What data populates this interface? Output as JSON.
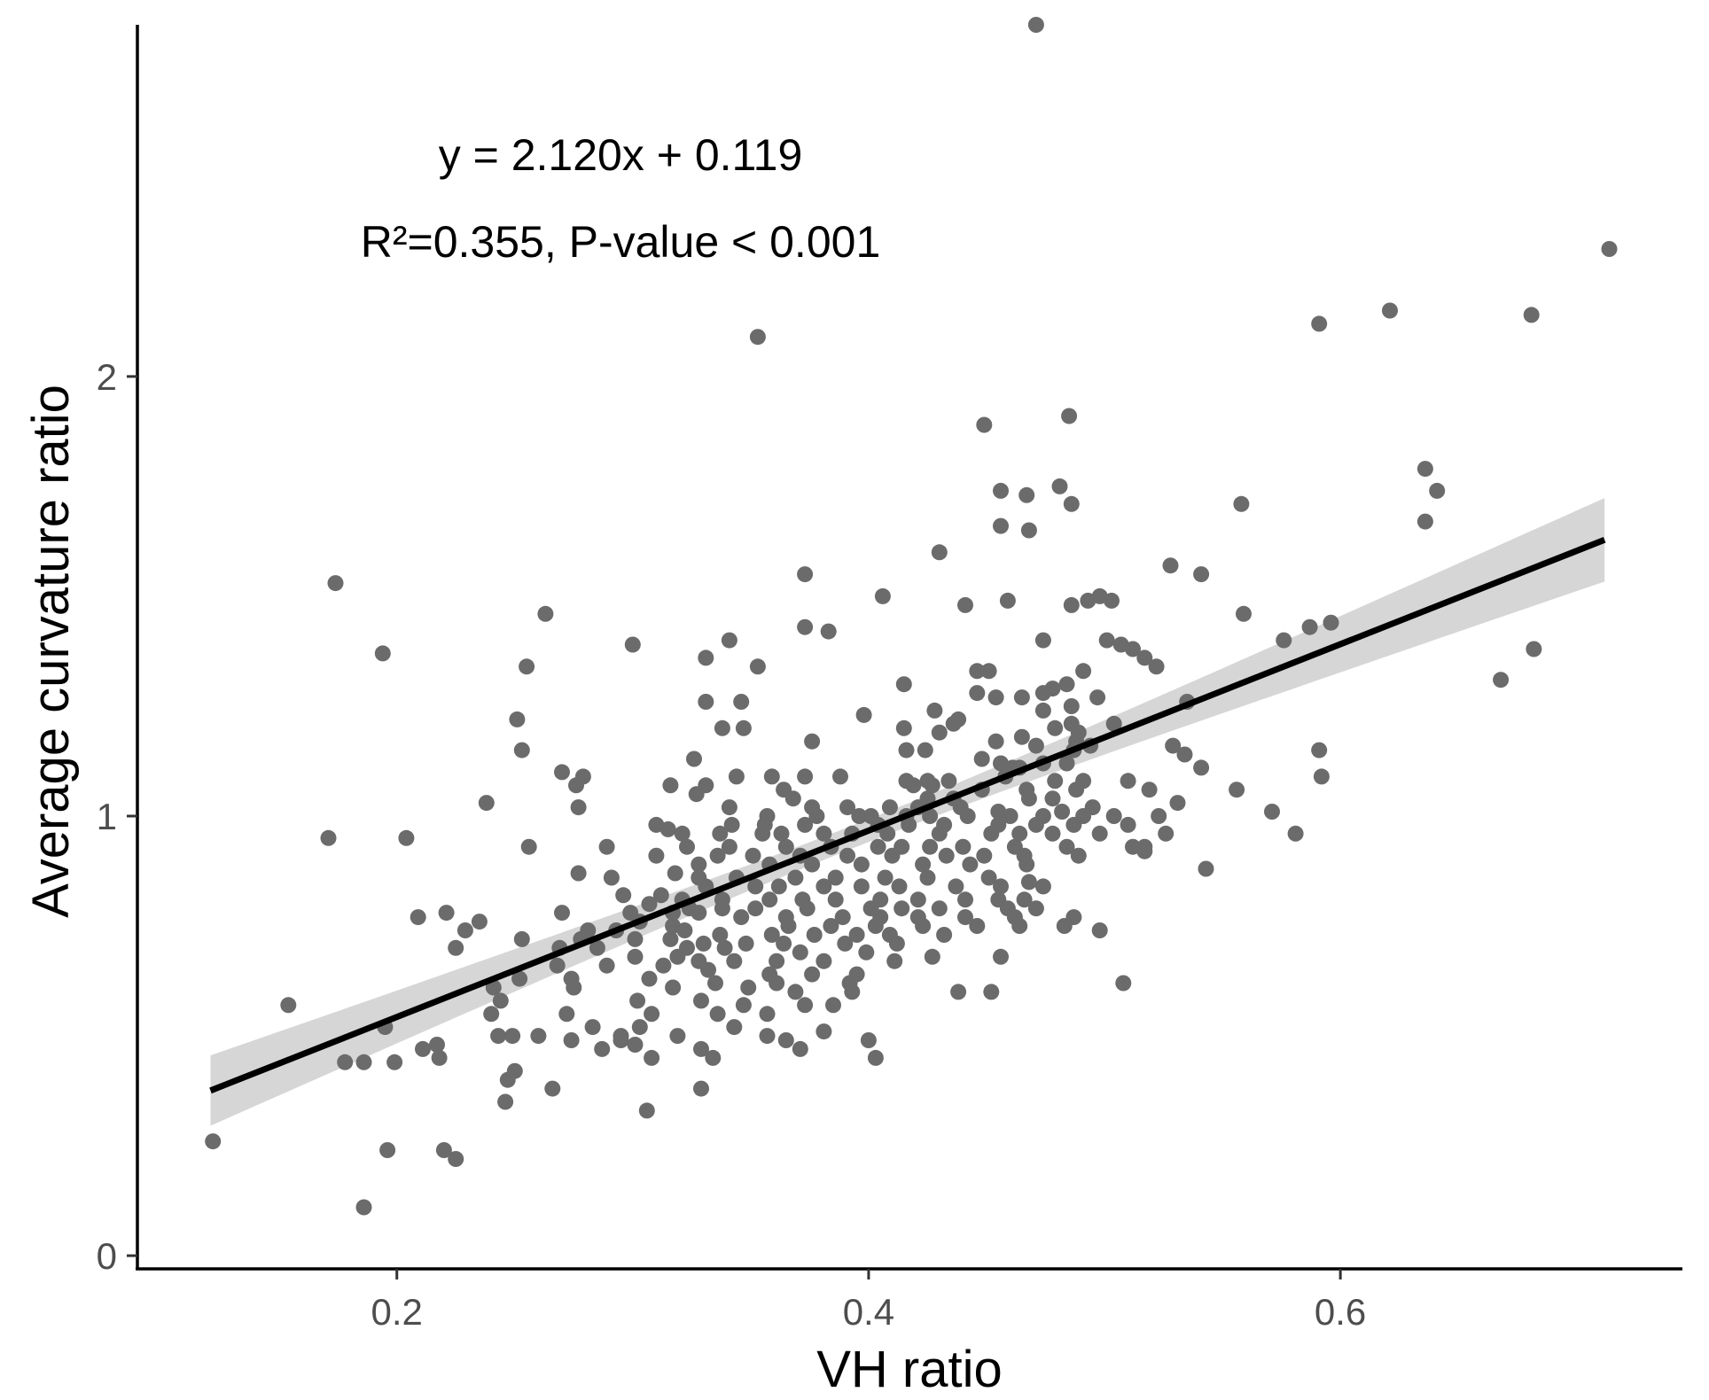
{
  "chart_data": {
    "type": "scatter",
    "title": "",
    "xlabel": "VH ratio",
    "ylabel": "Average curvature ratio",
    "xlim": [
      0.09,
      0.745
    ],
    "ylim": [
      -0.03,
      2.8
    ],
    "x_ticks": [
      0.2,
      0.4,
      0.6
    ],
    "x_tick_labels": [
      "0.2",
      "0.4",
      "0.6"
    ],
    "y_ticks": [
      0,
      1,
      2
    ],
    "y_tick_labels": [
      "0",
      "1",
      "2"
    ],
    "grid": false,
    "annotations": {
      "equation": "y = 2.120x + 0.119",
      "stats": "R²=0.355, P-value < 0.001"
    },
    "fit": {
      "slope": 2.12,
      "intercept": 0.119,
      "x_range": [
        0.121,
        0.712
      ],
      "ci_lower_end": [
        0.3,
        1.54
      ],
      "ci_upper_end": [
        0.455,
        1.74
      ],
      "ci_center_x": 0.4
    },
    "colors": {
      "points": "#6b6b6b",
      "line": "#000000",
      "band": "#d6d6d6",
      "axis": "#000000",
      "tick_text": "#4d4d4d"
    },
    "points": [
      [
        0.471,
        2.8
      ],
      [
        0.714,
        2.29
      ],
      [
        0.353,
        2.09
      ],
      [
        0.621,
        2.15
      ],
      [
        0.681,
        2.14
      ],
      [
        0.591,
        2.12
      ],
      [
        0.449,
        1.89
      ],
      [
        0.485,
        1.91
      ],
      [
        0.636,
        1.79
      ],
      [
        0.641,
        1.74
      ],
      [
        0.456,
        1.74
      ],
      [
        0.467,
        1.73
      ],
      [
        0.481,
        1.75
      ],
      [
        0.486,
        1.71
      ],
      [
        0.558,
        1.71
      ],
      [
        0.636,
        1.67
      ],
      [
        0.456,
        1.66
      ],
      [
        0.468,
        1.65
      ],
      [
        0.43,
        1.6
      ],
      [
        0.528,
        1.57
      ],
      [
        0.373,
        1.55
      ],
      [
        0.541,
        1.55
      ],
      [
        0.174,
        1.53
      ],
      [
        0.406,
        1.5
      ],
      [
        0.441,
        1.48
      ],
      [
        0.459,
        1.49
      ],
      [
        0.486,
        1.48
      ],
      [
        0.493,
        1.49
      ],
      [
        0.498,
        1.5
      ],
      [
        0.503,
        1.49
      ],
      [
        0.263,
        1.46
      ],
      [
        0.559,
        1.46
      ],
      [
        0.373,
        1.43
      ],
      [
        0.383,
        1.42
      ],
      [
        0.587,
        1.43
      ],
      [
        0.596,
        1.44
      ],
      [
        0.341,
        1.4
      ],
      [
        0.3,
        1.39
      ],
      [
        0.474,
        1.4
      ],
      [
        0.501,
        1.4
      ],
      [
        0.512,
        1.38
      ],
      [
        0.576,
        1.4
      ],
      [
        0.682,
        1.38
      ],
      [
        0.194,
        1.37
      ],
      [
        0.331,
        1.36
      ],
      [
        0.353,
        1.34
      ],
      [
        0.507,
        1.39
      ],
      [
        0.517,
        1.36
      ],
      [
        0.522,
        1.34
      ],
      [
        0.255,
        1.34
      ],
      [
        0.446,
        1.33
      ],
      [
        0.451,
        1.33
      ],
      [
        0.491,
        1.33
      ],
      [
        0.484,
        1.3
      ],
      [
        0.474,
        1.28
      ],
      [
        0.446,
        1.28
      ],
      [
        0.454,
        1.27
      ],
      [
        0.465,
        1.27
      ],
      [
        0.478,
        1.29
      ],
      [
        0.668,
        1.31
      ],
      [
        0.415,
        1.3
      ],
      [
        0.331,
        1.26
      ],
      [
        0.346,
        1.26
      ],
      [
        0.428,
        1.24
      ],
      [
        0.438,
        1.22
      ],
      [
        0.497,
        1.27
      ],
      [
        0.486,
        1.25
      ],
      [
        0.474,
        1.24
      ],
      [
        0.535,
        1.26
      ],
      [
        0.251,
        1.22
      ],
      [
        0.398,
        1.23
      ],
      [
        0.436,
        1.21
      ],
      [
        0.486,
        1.21
      ],
      [
        0.479,
        1.2
      ],
      [
        0.489,
        1.19
      ],
      [
        0.504,
        1.21
      ],
      [
        0.338,
        1.2
      ],
      [
        0.347,
        1.2
      ],
      [
        0.415,
        1.2
      ],
      [
        0.43,
        1.19
      ],
      [
        0.465,
        1.18
      ],
      [
        0.488,
        1.17
      ],
      [
        0.494,
        1.16
      ],
      [
        0.529,
        1.16
      ],
      [
        0.376,
        1.17
      ],
      [
        0.454,
        1.17
      ],
      [
        0.471,
        1.16
      ],
      [
        0.416,
        1.15
      ],
      [
        0.424,
        1.15
      ],
      [
        0.253,
        1.15
      ],
      [
        0.487,
        1.15
      ],
      [
        0.534,
        1.14
      ],
      [
        0.591,
        1.15
      ],
      [
        0.326,
        1.13
      ],
      [
        0.448,
        1.13
      ],
      [
        0.456,
        1.12
      ],
      [
        0.484,
        1.12
      ],
      [
        0.461,
        1.11
      ],
      [
        0.464,
        1.11
      ],
      [
        0.474,
        1.12
      ],
      [
        0.541,
        1.11
      ],
      [
        0.27,
        1.1
      ],
      [
        0.279,
        1.09
      ],
      [
        0.344,
        1.09
      ],
      [
        0.359,
        1.09
      ],
      [
        0.373,
        1.09
      ],
      [
        0.388,
        1.09
      ],
      [
        0.416,
        1.08
      ],
      [
        0.425,
        1.08
      ],
      [
        0.434,
        1.08
      ],
      [
        0.458,
        1.09
      ],
      [
        0.479,
        1.08
      ],
      [
        0.491,
        1.08
      ],
      [
        0.51,
        1.08
      ],
      [
        0.592,
        1.09
      ],
      [
        0.276,
        1.07
      ],
      [
        0.316,
        1.07
      ],
      [
        0.331,
        1.07
      ],
      [
        0.364,
        1.06
      ],
      [
        0.419,
        1.07
      ],
      [
        0.427,
        1.07
      ],
      [
        0.448,
        1.06
      ],
      [
        0.467,
        1.06
      ],
      [
        0.488,
        1.06
      ],
      [
        0.519,
        1.06
      ],
      [
        0.327,
        1.05
      ],
      [
        0.368,
        1.04
      ],
      [
        0.425,
        1.04
      ],
      [
        0.436,
        1.04
      ],
      [
        0.468,
        1.04
      ],
      [
        0.478,
        1.04
      ],
      [
        0.556,
        1.06
      ],
      [
        0.238,
        1.03
      ],
      [
        0.277,
        1.02
      ],
      [
        0.341,
        1.02
      ],
      [
        0.376,
        1.02
      ],
      [
        0.391,
        1.02
      ],
      [
        0.409,
        1.02
      ],
      [
        0.421,
        1.02
      ],
      [
        0.439,
        1.02
      ],
      [
        0.455,
        1.01
      ],
      [
        0.482,
        1.01
      ],
      [
        0.495,
        1.02
      ],
      [
        0.531,
        1.03
      ],
      [
        0.571,
        1.01
      ],
      [
        0.357,
        1.0
      ],
      [
        0.378,
        1.0
      ],
      [
        0.396,
        1.0
      ],
      [
        0.401,
        1.0
      ],
      [
        0.416,
        1.0
      ],
      [
        0.426,
        1.0
      ],
      [
        0.442,
        1.0
      ],
      [
        0.46,
        1.0
      ],
      [
        0.474,
        1.0
      ],
      [
        0.491,
        1.0
      ],
      [
        0.504,
        1.0
      ],
      [
        0.523,
        1.0
      ],
      [
        0.31,
        0.98
      ],
      [
        0.342,
        0.98
      ],
      [
        0.356,
        0.98
      ],
      [
        0.373,
        0.98
      ],
      [
        0.404,
        0.98
      ],
      [
        0.417,
        0.98
      ],
      [
        0.432,
        0.98
      ],
      [
        0.455,
        0.98
      ],
      [
        0.471,
        0.98
      ],
      [
        0.487,
        0.98
      ],
      [
        0.51,
        0.98
      ],
      [
        0.315,
        0.97
      ],
      [
        0.321,
        0.96
      ],
      [
        0.337,
        0.96
      ],
      [
        0.355,
        0.96
      ],
      [
        0.363,
        0.96
      ],
      [
        0.381,
        0.96
      ],
      [
        0.393,
        0.96
      ],
      [
        0.408,
        0.96
      ],
      [
        0.43,
        0.96
      ],
      [
        0.452,
        0.96
      ],
      [
        0.464,
        0.96
      ],
      [
        0.478,
        0.96
      ],
      [
        0.498,
        0.96
      ],
      [
        0.526,
        0.96
      ],
      [
        0.171,
        0.95
      ],
      [
        0.204,
        0.95
      ],
      [
        0.256,
        0.93
      ],
      [
        0.289,
        0.93
      ],
      [
        0.323,
        0.93
      ],
      [
        0.341,
        0.93
      ],
      [
        0.365,
        0.93
      ],
      [
        0.384,
        0.93
      ],
      [
        0.404,
        0.93
      ],
      [
        0.414,
        0.93
      ],
      [
        0.426,
        0.93
      ],
      [
        0.44,
        0.93
      ],
      [
        0.462,
        0.93
      ],
      [
        0.484,
        0.93
      ],
      [
        0.512,
        0.93
      ],
      [
        0.517,
        0.93
      ],
      [
        0.31,
        0.91
      ],
      [
        0.336,
        0.91
      ],
      [
        0.351,
        0.91
      ],
      [
        0.371,
        0.91
      ],
      [
        0.391,
        0.91
      ],
      [
        0.41,
        0.91
      ],
      [
        0.433,
        0.91
      ],
      [
        0.449,
        0.91
      ],
      [
        0.466,
        0.91
      ],
      [
        0.489,
        0.91
      ],
      [
        0.517,
        0.92
      ],
      [
        0.581,
        0.96
      ],
      [
        0.328,
        0.89
      ],
      [
        0.358,
        0.89
      ],
      [
        0.376,
        0.89
      ],
      [
        0.397,
        0.89
      ],
      [
        0.423,
        0.89
      ],
      [
        0.443,
        0.89
      ],
      [
        0.467,
        0.89
      ],
      [
        0.543,
        0.88
      ],
      [
        0.277,
        0.87
      ],
      [
        0.291,
        0.86
      ],
      [
        0.318,
        0.87
      ],
      [
        0.328,
        0.86
      ],
      [
        0.344,
        0.86
      ],
      [
        0.369,
        0.86
      ],
      [
        0.386,
        0.86
      ],
      [
        0.407,
        0.86
      ],
      [
        0.425,
        0.86
      ],
      [
        0.451,
        0.86
      ],
      [
        0.468,
        0.85
      ],
      [
        0.331,
        0.84
      ],
      [
        0.352,
        0.84
      ],
      [
        0.362,
        0.84
      ],
      [
        0.381,
        0.84
      ],
      [
        0.397,
        0.84
      ],
      [
        0.413,
        0.84
      ],
      [
        0.437,
        0.84
      ],
      [
        0.456,
        0.84
      ],
      [
        0.474,
        0.84
      ],
      [
        0.296,
        0.82
      ],
      [
        0.312,
        0.82
      ],
      [
        0.321,
        0.81
      ],
      [
        0.338,
        0.81
      ],
      [
        0.358,
        0.81
      ],
      [
        0.372,
        0.81
      ],
      [
        0.386,
        0.81
      ],
      [
        0.405,
        0.81
      ],
      [
        0.421,
        0.81
      ],
      [
        0.441,
        0.81
      ],
      [
        0.455,
        0.81
      ],
      [
        0.466,
        0.81
      ],
      [
        0.307,
        0.8
      ],
      [
        0.324,
        0.79
      ],
      [
        0.338,
        0.79
      ],
      [
        0.352,
        0.79
      ],
      [
        0.374,
        0.79
      ],
      [
        0.401,
        0.79
      ],
      [
        0.414,
        0.79
      ],
      [
        0.43,
        0.79
      ],
      [
        0.459,
        0.79
      ],
      [
        0.471,
        0.79
      ],
      [
        0.221,
        0.78
      ],
      [
        0.27,
        0.78
      ],
      [
        0.299,
        0.78
      ],
      [
        0.317,
        0.78
      ],
      [
        0.328,
        0.78
      ],
      [
        0.346,
        0.77
      ],
      [
        0.365,
        0.77
      ],
      [
        0.389,
        0.77
      ],
      [
        0.405,
        0.77
      ],
      [
        0.421,
        0.77
      ],
      [
        0.441,
        0.77
      ],
      [
        0.462,
        0.77
      ],
      [
        0.487,
        0.77
      ],
      [
        0.209,
        0.77
      ],
      [
        0.235,
        0.76
      ],
      [
        0.303,
        0.76
      ],
      [
        0.317,
        0.75
      ],
      [
        0.366,
        0.75
      ],
      [
        0.384,
        0.75
      ],
      [
        0.403,
        0.75
      ],
      [
        0.423,
        0.75
      ],
      [
        0.446,
        0.75
      ],
      [
        0.464,
        0.75
      ],
      [
        0.483,
        0.75
      ],
      [
        0.498,
        0.74
      ],
      [
        0.229,
        0.74
      ],
      [
        0.281,
        0.74
      ],
      [
        0.293,
        0.74
      ],
      [
        0.322,
        0.74
      ],
      [
        0.337,
        0.73
      ],
      [
        0.359,
        0.73
      ],
      [
        0.377,
        0.73
      ],
      [
        0.395,
        0.73
      ],
      [
        0.409,
        0.73
      ],
      [
        0.432,
        0.73
      ],
      [
        0.253,
        0.72
      ],
      [
        0.278,
        0.72
      ],
      [
        0.301,
        0.72
      ],
      [
        0.316,
        0.72
      ],
      [
        0.33,
        0.71
      ],
      [
        0.348,
        0.71
      ],
      [
        0.364,
        0.71
      ],
      [
        0.39,
        0.71
      ],
      [
        0.412,
        0.71
      ],
      [
        0.225,
        0.7
      ],
      [
        0.269,
        0.7
      ],
      [
        0.285,
        0.7
      ],
      [
        0.323,
        0.7
      ],
      [
        0.339,
        0.7
      ],
      [
        0.371,
        0.69
      ],
      [
        0.399,
        0.69
      ],
      [
        0.427,
        0.68
      ],
      [
        0.456,
        0.68
      ],
      [
        0.301,
        0.68
      ],
      [
        0.319,
        0.68
      ],
      [
        0.328,
        0.67
      ],
      [
        0.343,
        0.67
      ],
      [
        0.361,
        0.67
      ],
      [
        0.381,
        0.67
      ],
      [
        0.411,
        0.67
      ],
      [
        0.268,
        0.66
      ],
      [
        0.289,
        0.66
      ],
      [
        0.313,
        0.66
      ],
      [
        0.332,
        0.65
      ],
      [
        0.358,
        0.64
      ],
      [
        0.376,
        0.64
      ],
      [
        0.395,
        0.64
      ],
      [
        0.252,
        0.63
      ],
      [
        0.274,
        0.63
      ],
      [
        0.307,
        0.63
      ],
      [
        0.335,
        0.62
      ],
      [
        0.361,
        0.62
      ],
      [
        0.392,
        0.62
      ],
      [
        0.241,
        0.61
      ],
      [
        0.275,
        0.61
      ],
      [
        0.317,
        0.61
      ],
      [
        0.349,
        0.61
      ],
      [
        0.369,
        0.6
      ],
      [
        0.393,
        0.6
      ],
      [
        0.438,
        0.6
      ],
      [
        0.452,
        0.6
      ],
      [
        0.508,
        0.62
      ],
      [
        0.154,
        0.57
      ],
      [
        0.244,
        0.58
      ],
      [
        0.302,
        0.58
      ],
      [
        0.329,
        0.58
      ],
      [
        0.347,
        0.57
      ],
      [
        0.373,
        0.57
      ],
      [
        0.385,
        0.57
      ],
      [
        0.24,
        0.55
      ],
      [
        0.272,
        0.55
      ],
      [
        0.308,
        0.55
      ],
      [
        0.336,
        0.55
      ],
      [
        0.357,
        0.55
      ],
      [
        0.195,
        0.52
      ],
      [
        0.283,
        0.52
      ],
      [
        0.303,
        0.52
      ],
      [
        0.343,
        0.52
      ],
      [
        0.381,
        0.51
      ],
      [
        0.243,
        0.5
      ],
      [
        0.249,
        0.5
      ],
      [
        0.26,
        0.5
      ],
      [
        0.295,
        0.5
      ],
      [
        0.319,
        0.5
      ],
      [
        0.357,
        0.5
      ],
      [
        0.217,
        0.48
      ],
      [
        0.274,
        0.49
      ],
      [
        0.295,
        0.49
      ],
      [
        0.365,
        0.49
      ],
      [
        0.4,
        0.49
      ],
      [
        0.211,
        0.47
      ],
      [
        0.287,
        0.47
      ],
      [
        0.301,
        0.48
      ],
      [
        0.329,
        0.47
      ],
      [
        0.371,
        0.47
      ],
      [
        0.218,
        0.45
      ],
      [
        0.308,
        0.45
      ],
      [
        0.334,
        0.45
      ],
      [
        0.403,
        0.45
      ],
      [
        0.178,
        0.44
      ],
      [
        0.186,
        0.44
      ],
      [
        0.199,
        0.44
      ],
      [
        0.25,
        0.42
      ],
      [
        0.266,
        0.38
      ],
      [
        0.247,
        0.4
      ],
      [
        0.329,
        0.38
      ],
      [
        0.246,
        0.35
      ],
      [
        0.306,
        0.33
      ],
      [
        0.122,
        0.26
      ],
      [
        0.196,
        0.24
      ],
      [
        0.22,
        0.24
      ],
      [
        0.225,
        0.22
      ],
      [
        0.186,
        0.11
      ]
    ]
  }
}
